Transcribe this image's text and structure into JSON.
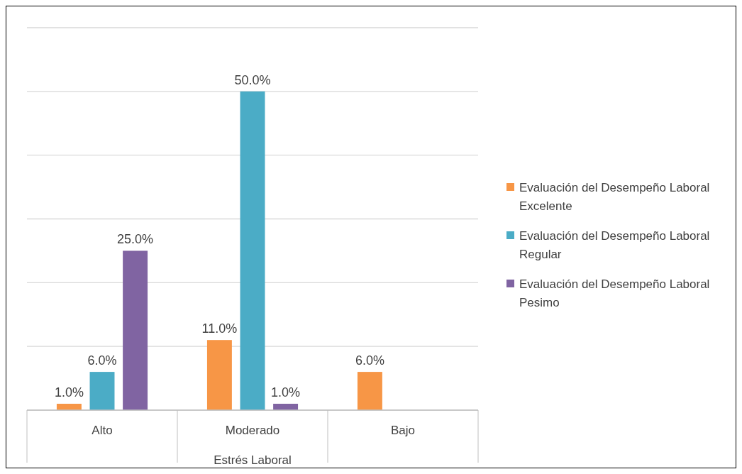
{
  "chart_data": {
    "type": "bar",
    "xlabel": "Estrés Laboral",
    "categories": [
      "Alto",
      "Moderado",
      "Bajo"
    ],
    "series": [
      {
        "name": "Evaluación del Desempeño Laboral Excelente",
        "color": "#f79646",
        "values": [
          1,
          11,
          6
        ],
        "value_labels": [
          "1.0%",
          "11.0%",
          "6.0%"
        ]
      },
      {
        "name": "Evaluación del Desempeño Laboral Regular",
        "color": "#4bacc6",
        "values": [
          6,
          50,
          null
        ],
        "value_labels": [
          "6.0%",
          "50.0%",
          null
        ]
      },
      {
        "name": "Evaluación del Desempeño Laboral Pesimo",
        "color": "#8064a2",
        "values": [
          25,
          1,
          null
        ],
        "value_labels": [
          "25.0%",
          "1.0%",
          null
        ]
      }
    ],
    "ylim": [
      0,
      60
    ],
    "yticks": [
      {
        "value": 0,
        "label": null
      },
      {
        "value": 10,
        "label": null
      },
      {
        "value": 20,
        "label": null
      },
      {
        "value": 30,
        "label": null
      },
      {
        "value": 40,
        "label": null
      },
      {
        "value": 50,
        "label": null
      },
      {
        "value": 60,
        "label": null
      }
    ],
    "grid": "y",
    "tick_labels": "x",
    "legend": "right"
  }
}
